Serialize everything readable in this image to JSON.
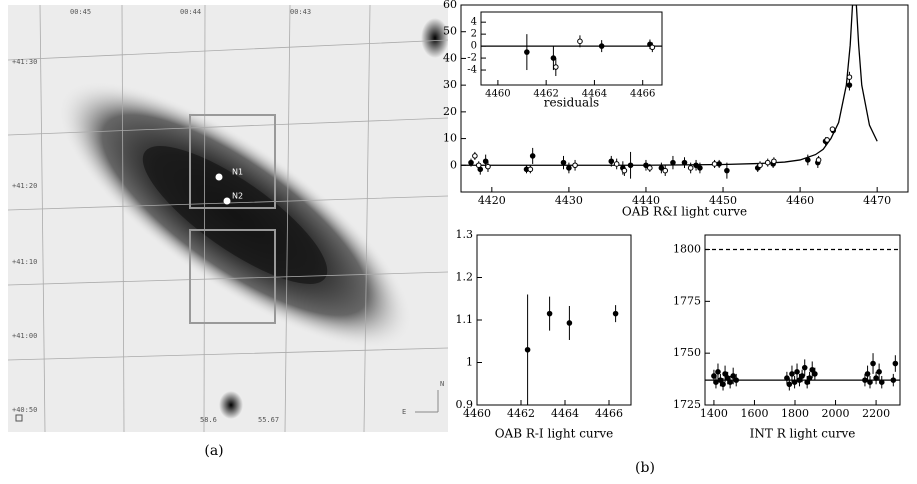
{
  "panel_a": {
    "label": "(a)",
    "markers": [
      "N1",
      "N2"
    ],
    "ra_labels": [
      "00:45",
      "00:44",
      "00:43"
    ],
    "dec_labels": [
      "+41:30",
      "+41:20",
      "+41:10",
      "+41:00",
      "+40:50"
    ],
    "scale_labels": [
      "58.6",
      "55.67"
    ],
    "compass": [
      "E",
      "N"
    ]
  },
  "panel_b_label": "(b)",
  "chart_data": [
    {
      "type": "scatter",
      "xlabel": "OAB R&I light curve",
      "xlim": [
        4416,
        4474
      ],
      "ylim": [
        -10,
        60
      ],
      "xticks": [
        4420,
        4430,
        4440,
        4450,
        4460,
        4470
      ],
      "yticks": [
        0,
        10,
        20,
        30,
        40,
        50,
        60
      ],
      "series": [
        {
          "style": "line",
          "color": "#000",
          "x": [
            4416,
            4440,
            4450,
            4455,
            4458,
            4460,
            4462,
            4463,
            4464,
            4465,
            4466,
            4466.5,
            4466.8,
            4467.3,
            4467.6,
            4468,
            4469,
            4470
          ],
          "values": [
            0,
            0,
            0.3,
            0.7,
            1.2,
            2,
            4,
            6,
            10,
            16,
            30,
            45,
            60,
            60,
            45,
            30,
            15,
            9
          ]
        },
        {
          "style": "errorbar",
          "marker": "filled",
          "color": "#000",
          "x": [
            4417.3,
            4418.5,
            4419.2,
            4424.5,
            4425.3,
            4429.3,
            4430,
            4435.5,
            4437,
            4438,
            4440,
            4442,
            4443.5,
            4445,
            4446.5,
            4447,
            4449.5,
            4450.5,
            4454.5,
            4456.5,
            4461,
            4462.3,
            4463.3,
            4464.3,
            4466.4
          ],
          "values": [
            1,
            -1.5,
            1.5,
            -1.5,
            3.5,
            1,
            -1,
            1.5,
            -1,
            0,
            0,
            -1,
            1,
            1,
            0,
            -1,
            0.5,
            -2,
            -1,
            0.5,
            2,
            1,
            9,
            13,
            30
          ],
          "errors": [
            1.5,
            2,
            2.5,
            1.5,
            3,
            2.5,
            2,
            2,
            2.5,
            5,
            2,
            2,
            2.5,
            2,
            2,
            2,
            1.5,
            3,
            1.5,
            1.5,
            2,
            2,
            1.5,
            1,
            2
          ]
        },
        {
          "style": "errorbar",
          "marker": "open",
          "color": "#000",
          "x": [
            4417.8,
            4418.3,
            4419.5,
            4425,
            4430.8,
            4436.2,
            4437.2,
            4440.5,
            4442.5,
            4445.8,
            4448.9,
            4454.8,
            4455.8,
            4456.6,
            4462.4,
            4463.5,
            4464.2,
            4466.4
          ],
          "values": [
            3.5,
            0,
            -0.5,
            -1.5,
            0,
            0.5,
            -2,
            -1,
            -2,
            -1,
            0.5,
            0,
            1,
            1.5,
            2,
            9.5,
            13.5,
            33
          ],
          "errors": [
            1.5,
            1.5,
            2,
            1.5,
            2,
            2,
            2,
            1.5,
            2,
            2,
            1.5,
            1.5,
            1.5,
            1.5,
            1.5,
            1,
            1,
            2
          ]
        }
      ]
    },
    {
      "type": "scatter",
      "xlabel": "residuals",
      "xlim": [
        4459.3,
        4466.8
      ],
      "ylim": [
        -6.5,
        5.7
      ],
      "xticks": [
        4460,
        4462,
        4464,
        4466
      ],
      "yticks": [
        -4,
        -2,
        0,
        2,
        4
      ],
      "lines": [
        {
          "y": 0,
          "style": "solid"
        }
      ],
      "series": [
        {
          "style": "errorbar",
          "marker": "filled",
          "color": "#000",
          "x": [
            4461.2,
            4462.3,
            4464.3,
            4466.3
          ],
          "values": [
            -1,
            -2,
            0,
            0.3
          ],
          "errors": [
            3,
            2,
            1,
            0.8
          ]
        },
        {
          "style": "errorbar",
          "marker": "open",
          "color": "#000",
          "x": [
            4462.4,
            4463.4,
            4466.4
          ],
          "values": [
            -3.5,
            0.8,
            -0.2
          ],
          "errors": [
            1.5,
            1,
            0.8
          ]
        }
      ]
    },
    {
      "type": "scatter",
      "xlabel": "OAB R-I light curve",
      "xlim": [
        4460,
        4467
      ],
      "ylim": [
        0.9,
        1.3
      ],
      "xticks": [
        4460,
        4462,
        4464,
        4466
      ],
      "yticks": [
        0.9,
        1,
        1.1,
        1.2,
        1.3
      ],
      "series": [
        {
          "style": "errorbar",
          "marker": "filled",
          "color": "#000",
          "x": [
            4462.3,
            4463.3,
            4464.2,
            4466.3
          ],
          "values": [
            1.03,
            1.115,
            1.093,
            1.115
          ],
          "errors": [
            0.13,
            0.04,
            0.04,
            0.02
          ]
        }
      ]
    },
    {
      "type": "scatter",
      "xlabel": "INT R light curve",
      "xlim": [
        1356,
        2318
      ],
      "ylim": [
        1725,
        1807
      ],
      "xticks": [
        1400,
        1600,
        1800,
        2000,
        2200
      ],
      "yticks": [
        1725,
        1750,
        1775,
        1800
      ],
      "lines": [
        {
          "y": 1800,
          "style": "dashed"
        },
        {
          "y": 1737,
          "style": "solid"
        }
      ],
      "series": [
        {
          "style": "errorbar",
          "marker": "filled",
          "color": "#000",
          "x": [
            1400,
            1410,
            1420,
            1432,
            1445,
            1455,
            1468,
            1480,
            1495,
            1510,
            1760,
            1772,
            1785,
            1798,
            1810,
            1822,
            1835,
            1848,
            1860,
            1872,
            1885,
            1898,
            2145,
            2158,
            2170,
            2185,
            2200,
            2215,
            2228,
            2285,
            2295
          ],
          "values": [
            1739,
            1736,
            1741,
            1737,
            1735,
            1740,
            1738,
            1736,
            1739,
            1737,
            1738,
            1735,
            1740,
            1736,
            1741,
            1737,
            1739,
            1743,
            1736,
            1738,
            1742,
            1740,
            1737,
            1740,
            1736,
            1745,
            1738,
            1741,
            1736,
            1737,
            1745
          ],
          "errors": [
            3,
            3,
            4,
            3,
            3,
            4,
            3,
            3,
            4,
            3,
            3,
            3,
            4,
            3,
            4,
            3,
            3,
            4,
            3,
            3,
            4,
            3,
            3,
            4,
            3,
            5,
            3,
            4,
            3,
            3,
            4
          ]
        }
      ]
    }
  ]
}
